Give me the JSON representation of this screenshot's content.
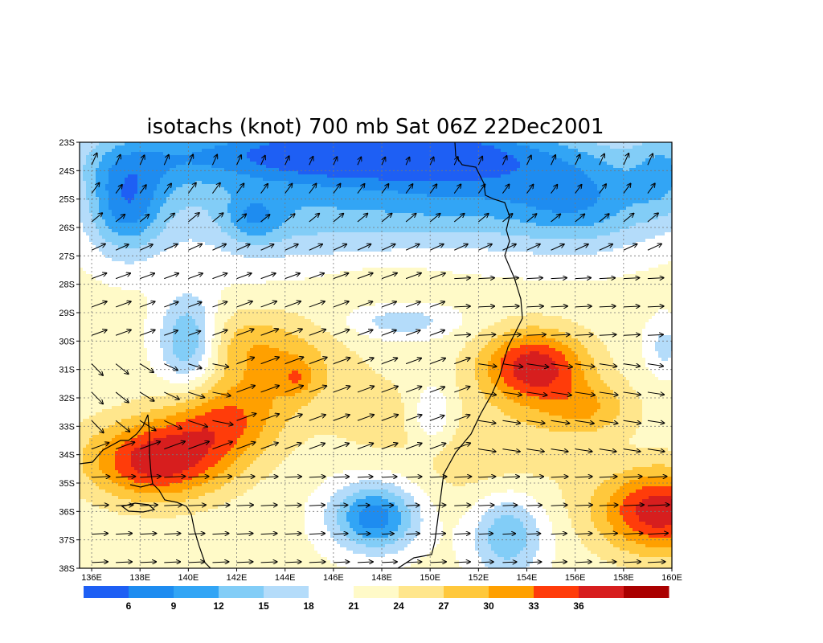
{
  "chart_data": {
    "type": "heatmap",
    "title": "isotachs (knot) 700 mb Sat 06Z 22Dec2001",
    "x": {
      "ticks": [
        "136E",
        "138E",
        "140E",
        "142E",
        "144E",
        "146E",
        "148E",
        "150E",
        "152E",
        "154E",
        "156E",
        "158E",
        "160E"
      ],
      "range": [
        135.5,
        160.0
      ]
    },
    "y": {
      "ticks": [
        "23S",
        "24S",
        "25S",
        "26S",
        "27S",
        "28S",
        "29S",
        "30S",
        "31S",
        "32S",
        "33S",
        "34S",
        "35S",
        "36S",
        "37S",
        "38S"
      ],
      "range": [
        -38.0,
        -23.0
      ]
    },
    "grid": true,
    "colorbar": {
      "labels": [
        "6",
        "9",
        "12",
        "15",
        "18",
        "21",
        "24",
        "27",
        "30",
        "33",
        "36"
      ],
      "colors": [
        "#1e5ff4",
        "#1e8cf0",
        "#32a5f5",
        "#82cdf7",
        "#b4dcfa",
        "#ffffff",
        "#fffac8",
        "#ffe68c",
        "#ffc83c",
        "#ffa000",
        "#ff3c0a",
        "#d71e1e",
        "#aa0000"
      ]
    },
    "levels": [
      6,
      9,
      12,
      15,
      18,
      21,
      24,
      27,
      30,
      33,
      36
    ],
    "background_speed": 22,
    "features": [
      {
        "lon": 137.4,
        "lat": -25.3,
        "dlon": 1.6,
        "dlat": 1.7,
        "amp": -12
      },
      {
        "lon": 138.0,
        "lat": -23.7,
        "dlon": 3.2,
        "dlat": 1.3,
        "amp": -6
      },
      {
        "lon": 147.0,
        "lat": -23.3,
        "dlon": 7.0,
        "dlat": 1.0,
        "amp": -16
      },
      {
        "lon": 144.5,
        "lat": -25.0,
        "dlon": 6.0,
        "dlat": 2.2,
        "amp": -9
      },
      {
        "lon": 142.7,
        "lat": -25.7,
        "dlon": 1.2,
        "dlat": 0.9,
        "amp": -6
      },
      {
        "lon": 152.0,
        "lat": -24.5,
        "dlon": 4.5,
        "dlat": 2.0,
        "amp": -10
      },
      {
        "lon": 156.5,
        "lat": -25.0,
        "dlon": 3.0,
        "dlat": 1.8,
        "amp": -10
      },
      {
        "lon": 159.8,
        "lat": -24.0,
        "dlon": 1.5,
        "dlat": 1.8,
        "amp": -8
      },
      {
        "lon": 140.0,
        "lat": -30.0,
        "dlon": 1.2,
        "dlat": 1.6,
        "amp": -11
      },
      {
        "lon": 148.8,
        "lat": -29.3,
        "dlon": 2.2,
        "dlat": 0.6,
        "amp": -6
      },
      {
        "lon": 150.1,
        "lat": -32.6,
        "dlon": 0.8,
        "dlat": 1.0,
        "amp": -6
      },
      {
        "lon": 147.7,
        "lat": -36.2,
        "dlon": 1.8,
        "dlat": 1.2,
        "amp": -15
      },
      {
        "lon": 153.2,
        "lat": -36.8,
        "dlon": 1.5,
        "dlat": 1.5,
        "amp": -10
      },
      {
        "lon": 159.7,
        "lat": -30.2,
        "dlon": 0.8,
        "dlat": 1.0,
        "amp": -5
      },
      {
        "lon": 138.7,
        "lat": -34.2,
        "dlon": 2.9,
        "dlat": 1.4,
        "amp": 16
      },
      {
        "lon": 141.5,
        "lat": -32.8,
        "dlon": 2.4,
        "dlat": 1.4,
        "amp": 10
      },
      {
        "lon": 144.0,
        "lat": -30.9,
        "dlon": 2.5,
        "dlat": 1.6,
        "amp": 7
      },
      {
        "lon": 144.5,
        "lat": -31.3,
        "dlon": 0.6,
        "dlat": 0.6,
        "amp": 4
      },
      {
        "lon": 142.0,
        "lat": -30.0,
        "dlon": 2.0,
        "dlat": 1.2,
        "amp": 4
      },
      {
        "lon": 147.5,
        "lat": -32.5,
        "dlon": 2.0,
        "dlat": 1.5,
        "amp": 3
      },
      {
        "lon": 154.3,
        "lat": -30.9,
        "dlon": 2.2,
        "dlat": 1.3,
        "amp": 16
      },
      {
        "lon": 156.5,
        "lat": -32.4,
        "dlon": 2.0,
        "dlat": 1.0,
        "amp": 7
      },
      {
        "lon": 159.5,
        "lat": -36.0,
        "dlon": 2.6,
        "dlat": 1.5,
        "amp": 16
      },
      {
        "lon": 152.5,
        "lat": -34.0,
        "dlon": 3.5,
        "dlat": 2.0,
        "amp": 4
      },
      {
        "lon": 148.0,
        "lat": -28.0,
        "dlon": 3.0,
        "dlat": 1.0,
        "amp": 2
      }
    ]
  }
}
